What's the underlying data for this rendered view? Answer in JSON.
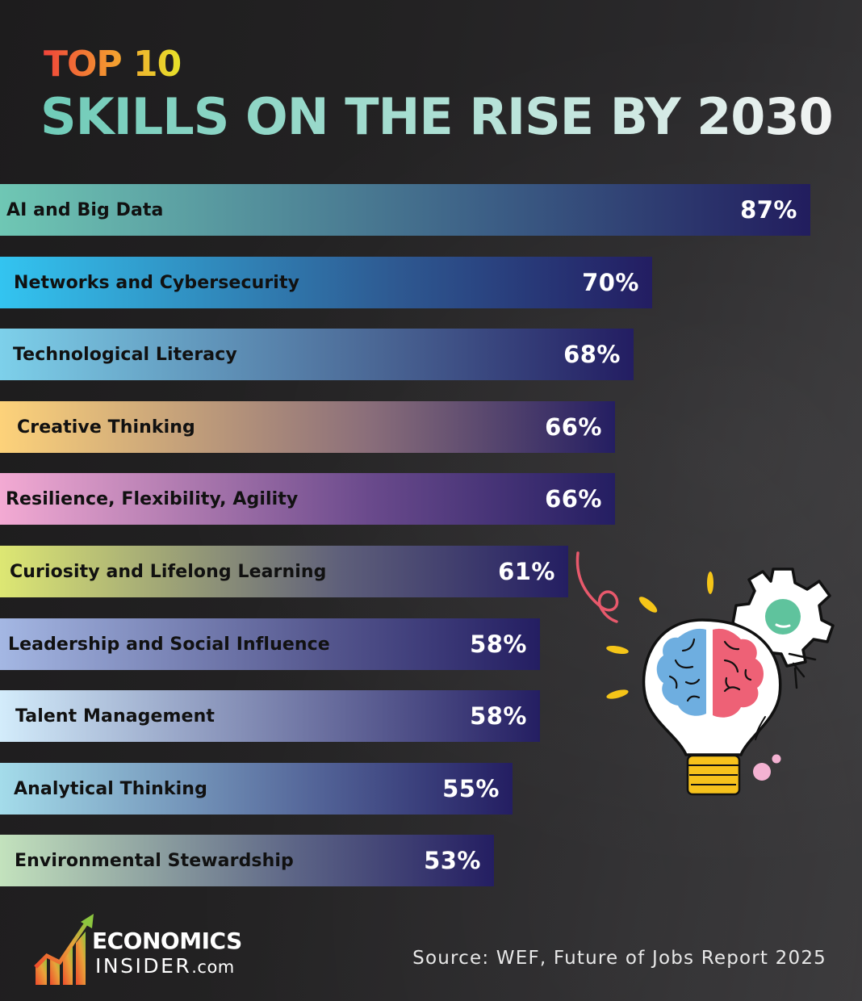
{
  "header": {
    "top_label": "TOP 10",
    "title": "SKILLS ON THE RISE BY 2030"
  },
  "chart_data": {
    "type": "bar",
    "orientation": "horizontal",
    "title": "TOP 10 SKILLS ON THE RISE BY 2030",
    "xlabel": "",
    "ylabel": "",
    "grid": false,
    "legend": null,
    "categories": [
      "AI and Big Data",
      "Networks and Cybersecurity",
      "Technological Literacy",
      "Creative Thinking",
      "Resilience, Flexibility, Agility",
      "Curiosity and Lifelong Learning",
      "Leadership and Social Influence",
      "Talent Management",
      "Analytical Thinking",
      "Environmental Stewardship"
    ],
    "values": [
      87,
      70,
      68,
      66,
      66,
      61,
      58,
      58,
      55,
      53
    ],
    "value_labels": [
      "87%",
      "70%",
      "68%",
      "66%",
      "66%",
      "61%",
      "58%",
      "58%",
      "55%",
      "53%"
    ],
    "unit": "%"
  },
  "bars": [
    {
      "label": "AI and Big Data",
      "value": "87%",
      "pct": 87,
      "color_start": "#6fc7b4",
      "color_mid": "#3c5f86",
      "color_end": "#221d5e",
      "label_pad": 8
    },
    {
      "label": "Networks and Cybersecurity",
      "value": "70%",
      "pct": 70,
      "color_start": "#33c4f0",
      "color_mid": "#2e5a92",
      "color_end": "#231d62",
      "label_pad": 17
    },
    {
      "label": "Technological Literacy",
      "value": "68%",
      "pct": 68,
      "color_start": "#7dd0ea",
      "color_mid": "#4a6694",
      "color_end": "#231d62",
      "label_pad": 16
    },
    {
      "label": "Creative Thinking",
      "value": "66%",
      "pct": 66,
      "color_start": "#fdd27a",
      "color_mid": "#8a6e7a",
      "color_end": "#241e62",
      "label_pad": 21
    },
    {
      "label": "Resilience, Flexibility, Agility",
      "value": "66%",
      "pct": 66,
      "color_start": "#f3aad3",
      "color_mid": "#6a4a8c",
      "color_end": "#241e62",
      "label_pad": 7
    },
    {
      "label": "Curiosity and Lifelong Learning",
      "value": "61%",
      "pct": 61,
      "color_start": "#dde773",
      "color_mid": "#5e5f7a",
      "color_end": "#241e62",
      "label_pad": 12
    },
    {
      "label": "Leadership and Social Influence",
      "value": "58%",
      "pct": 58,
      "color_start": "#a4b7e3",
      "color_mid": "#55578e",
      "color_end": "#241e62",
      "label_pad": 10
    },
    {
      "label": "Talent Management",
      "value": "58%",
      "pct": 58,
      "color_start": "#d3ecfb",
      "color_mid": "#6a6f9f",
      "color_end": "#241e62",
      "label_pad": 19
    },
    {
      "label": "Analytical Thinking",
      "value": "55%",
      "pct": 55,
      "color_start": "#a4dcea",
      "color_mid": "#55679a",
      "color_end": "#241e62",
      "label_pad": 17
    },
    {
      "label": "Environmental Stewardship",
      "value": "53%",
      "pct": 53,
      "color_start": "#c3e2bd",
      "color_mid": "#5c6486",
      "color_end": "#241e62",
      "label_pad": 18
    }
  ],
  "illustration": {
    "icon": "lightbulb-brain-gear-icon",
    "colors": {
      "brain_left": "#6eaee0",
      "brain_right": "#ee6176",
      "gear_center": "#5fc39d",
      "base": "#f7c21c",
      "rays": "#f5c518",
      "squiggle": "#e8596c",
      "bubbles": "#f4b2d2"
    }
  },
  "footer": {
    "logo_line1": "ECONOMICS",
    "logo_line2": "INSIDER",
    "logo_suffix": ".com",
    "source": "Source: WEF, Future of Jobs Report 2025"
  }
}
